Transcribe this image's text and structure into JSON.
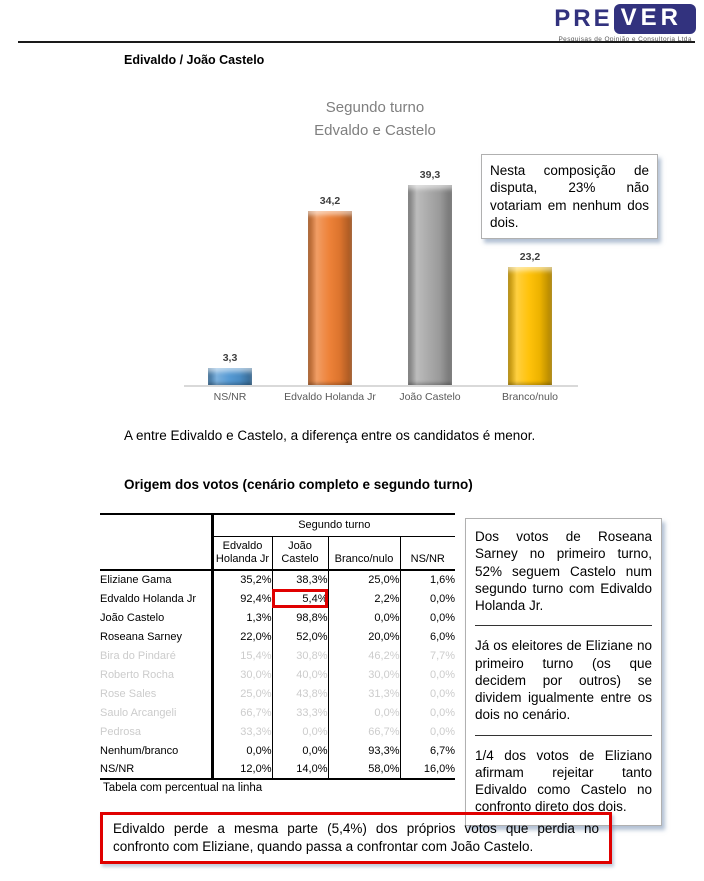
{
  "logo": {
    "pre": "PRE",
    "ver": "VER",
    "tagline": "Pesquisas de Opinião e Consultoria Ltda"
  },
  "page_title": "Edivaldo / João Castelo",
  "chart_data": {
    "type": "bar",
    "title_lines": [
      "Segundo turno",
      "Edvaldo e Castelo"
    ],
    "categories": [
      "NS/NR",
      "Edvaldo Holanda Jr",
      "João Castelo",
      "Branco/nulo"
    ],
    "values": [
      3.3,
      34.2,
      39.3,
      23.2
    ],
    "value_labels": [
      "3,3",
      "34,2",
      "39,3",
      "23,2"
    ],
    "colors": [
      "#4f96d2",
      "#ed7d31",
      "#a6a6a6",
      "#ffc000"
    ],
    "ylim": [
      0,
      45
    ],
    "grid": false,
    "legend": "none"
  },
  "chart_note": "Nesta composição de disputa, 23% não votariam em nenhum dos dois.",
  "chart_comment": "A entre Edivaldo e Castelo, a diferença entre os candidatos é menor.",
  "table_section": {
    "title": "Origem dos votos (cenário completo e segundo turno)",
    "group_header": "Segundo turno",
    "columns": [
      "Edvaldo Holanda Jr",
      "João Castelo",
      "Branco/nulo",
      "NS/NR"
    ],
    "rows": [
      {
        "label": "Eliziane Gama",
        "values": [
          "35,2%",
          "38,3%",
          "25,0%",
          "1,6%"
        ],
        "muted": false,
        "highlight_col": null
      },
      {
        "label": "Edvaldo Holanda Jr",
        "values": [
          "92,4%",
          "5,4%",
          "2,2%",
          "0,0%"
        ],
        "muted": false,
        "highlight_col": 1
      },
      {
        "label": "João Castelo",
        "values": [
          "1,3%",
          "98,8%",
          "0,0%",
          "0,0%"
        ],
        "muted": false,
        "highlight_col": null
      },
      {
        "label": "Roseana Sarney",
        "values": [
          "22,0%",
          "52,0%",
          "20,0%",
          "6,0%"
        ],
        "muted": false,
        "highlight_col": null
      },
      {
        "label": "Bira do Pindaré",
        "values": [
          "15,4%",
          "30,8%",
          "46,2%",
          "7,7%"
        ],
        "muted": true,
        "highlight_col": null
      },
      {
        "label": "Roberto Rocha",
        "values": [
          "30,0%",
          "40,0%",
          "30,0%",
          "0,0%"
        ],
        "muted": true,
        "highlight_col": null
      },
      {
        "label": "Rose Sales",
        "values": [
          "25,0%",
          "43,8%",
          "31,3%",
          "0,0%"
        ],
        "muted": true,
        "highlight_col": null
      },
      {
        "label": "Saulo Arcangeli",
        "values": [
          "66,7%",
          "33,3%",
          "0,0%",
          "0,0%"
        ],
        "muted": true,
        "highlight_col": null
      },
      {
        "label": "Pedrosa",
        "values": [
          "33,3%",
          "0,0%",
          "66,7%",
          "0,0%"
        ],
        "muted": true,
        "highlight_col": null
      },
      {
        "label": "Nenhum/branco",
        "values": [
          "0,0%",
          "0,0%",
          "93,3%",
          "6,7%"
        ],
        "muted": false,
        "highlight_col": null
      },
      {
        "label": "NS/NR",
        "values": [
          "12,0%",
          "14,0%",
          "58,0%",
          "16,0%"
        ],
        "muted": false,
        "highlight_col": null
      }
    ],
    "caption": "Tabela com percentual na linha"
  },
  "side_notes": [
    "Dos votos de Roseana Sarney no primeiro turno, 52% seguem Castelo num segundo turno com Edivaldo Holanda Jr.",
    "Já os eleitores de Eliziane no primeiro turno (os que decidem por outros) se dividem igualmente entre os dois no cenário.",
    "1/4 dos votos de Eliziano afirmam rejeitar tanto Edivaldo como Castelo no confronto direto dos dois."
  ],
  "conclusion": "Edivaldo perde a mesma parte (5,4%) dos próprios votos que perdia no confronto com Eliziane, quando passa a confrontar com João Castelo.",
  "colors": {
    "logo_navy": "#32327e",
    "highlight_red": "#e00000",
    "muted_row": "#cccccc",
    "chart_title_gray": "#7f7f7f"
  }
}
